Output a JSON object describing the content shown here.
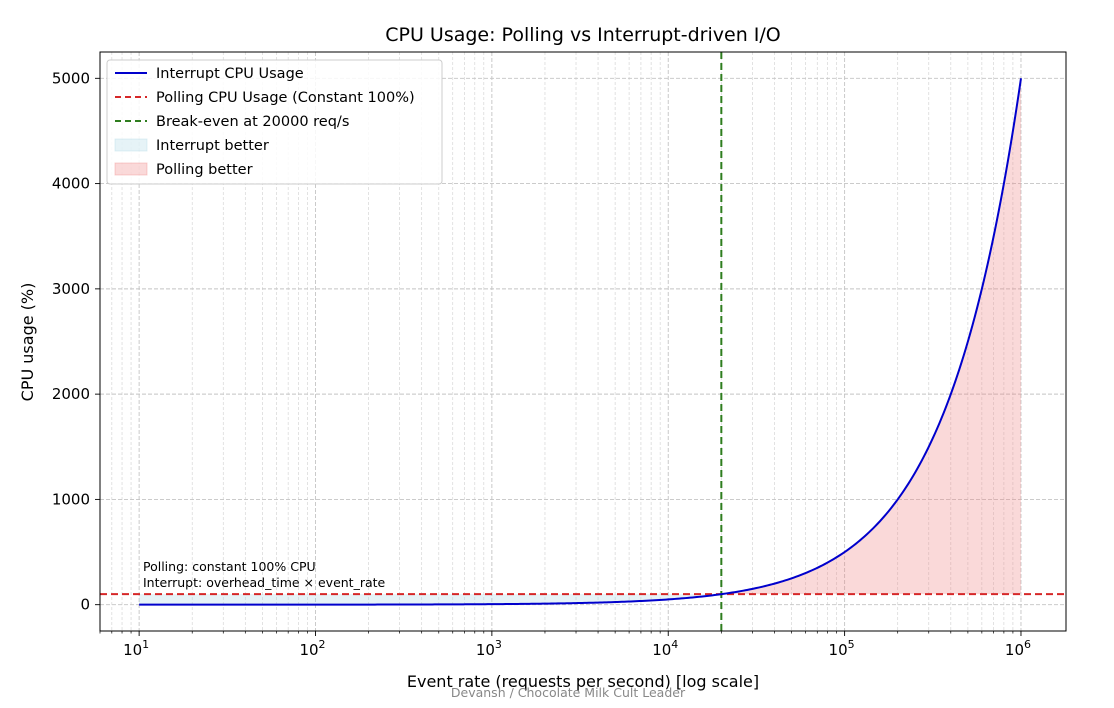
{
  "chart_data": {
    "type": "line",
    "title": "CPU Usage: Polling vs Interrupt-driven I/O",
    "xlabel": "Event rate (requests per second) [log scale]",
    "ylabel": "CPU usage (%)",
    "x_scale": "log",
    "xlim": [
      6,
      1800000
    ],
    "ylim": [
      -250,
      5250
    ],
    "x_ticks": [
      {
        "value": 10,
        "base": "10",
        "exp": "1"
      },
      {
        "value": 100,
        "base": "10",
        "exp": "2"
      },
      {
        "value": 1000,
        "base": "10",
        "exp": "3"
      },
      {
        "value": 10000,
        "base": "10",
        "exp": "4"
      },
      {
        "value": 100000,
        "base": "10",
        "exp": "5"
      },
      {
        "value": 1000000,
        "base": "10",
        "exp": "6"
      }
    ],
    "y_ticks": [
      {
        "value": 0,
        "label": "0"
      },
      {
        "value": 1000,
        "label": "1000"
      },
      {
        "value": 2000,
        "label": "2000"
      },
      {
        "value": 3000,
        "label": "3000"
      },
      {
        "value": 4000,
        "label": "4000"
      },
      {
        "value": 5000,
        "label": "5000"
      }
    ],
    "grid": true,
    "series": [
      {
        "name": "Interrupt CPU Usage",
        "kind": "line",
        "color": "#0000cc",
        "x": [
          10,
          100,
          1000,
          5000,
          10000,
          20000,
          50000,
          100000,
          200000,
          300000,
          500000,
          700000,
          1000000
        ],
        "y": [
          0.05,
          0.5,
          5,
          25,
          50,
          100,
          250,
          500,
          1000,
          1500,
          2500,
          3500,
          5000
        ]
      },
      {
        "name": "Polling CPU Usage (Constant 100%)",
        "kind": "hline",
        "color": "#d62728",
        "y": 100
      },
      {
        "name": "Break-even at 20000 req/s",
        "kind": "vline",
        "color": "#2e7d1e",
        "x": 20000
      },
      {
        "name": "Interrupt better",
        "kind": "fill",
        "color": "#add8e6",
        "x_range": [
          10,
          20000
        ]
      },
      {
        "name": "Polling better",
        "kind": "fill",
        "color": "#f08080",
        "x_range": [
          20000,
          1000000
        ]
      }
    ],
    "legend_position": "upper-left",
    "annotations": [
      "Polling: constant 100% CPU",
      "Interrupt: overhead_time × event_rate"
    ],
    "credit": "Devansh / Chocolate Milk Cult Leader"
  }
}
